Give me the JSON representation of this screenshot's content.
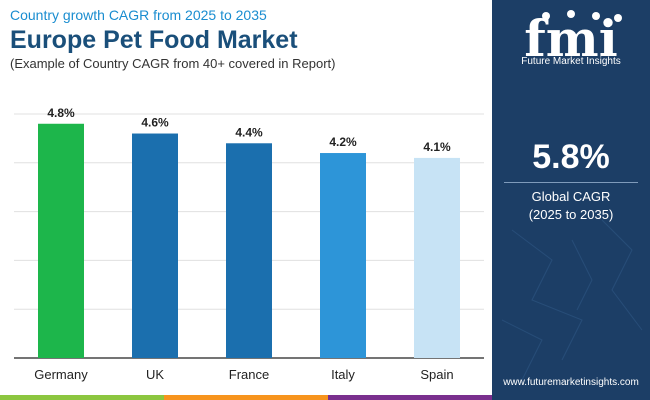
{
  "header": {
    "subtitle_top": "Country growth CAGR from 2025 to 2035",
    "title": "Europe Pet Food Market",
    "subtitle": "(Example of Country CAGR from 40+ covered in Report)"
  },
  "sidebar": {
    "logo_text": "fmi",
    "logo_caption": "Future Market Insights",
    "cagr_value": "5.8%",
    "cagr_label_line1": "Global CAGR",
    "cagr_label_line2": "(2025 to 2035)",
    "website": "www.futuremarketinsights.com"
  },
  "colors": {
    "sidebar_bg": "#1c3e66",
    "title": "#1a4f7a",
    "subtitle_top": "#1a8dd0",
    "strip": [
      "#8cc63f",
      "#f7941d",
      "#7a2f8e"
    ]
  },
  "chart_data": {
    "type": "bar",
    "categories": [
      "Germany",
      "UK",
      "France",
      "Italy",
      "Spain"
    ],
    "values": [
      4.8,
      4.6,
      4.4,
      4.2,
      4.1
    ],
    "data_labels": [
      "4.8%",
      "4.6%",
      "4.4%",
      "4.2%",
      "4.1%"
    ],
    "bar_colors": [
      "#1db64b",
      "#1b6fae",
      "#1b6fae",
      "#2d95d8",
      "#c7e3f5"
    ],
    "ylim": [
      0,
      5
    ],
    "grid": true,
    "title": "",
    "xlabel": "",
    "ylabel": ""
  }
}
